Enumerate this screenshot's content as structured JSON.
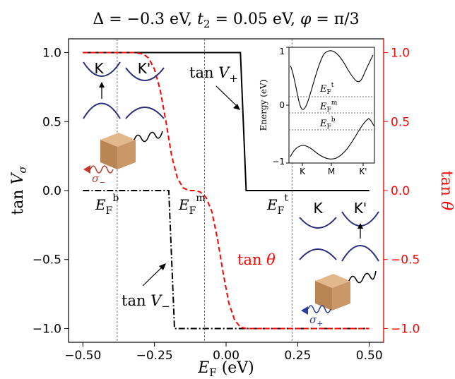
{
  "chart_data": {
    "type": "line",
    "title": "Δ = −0.3 eV, t₂ = 0.05 eV, φ = π/3",
    "xlabel": "E_F (eV)",
    "ylabel_left": "tan V_σ",
    "ylabel_right": "tan θ",
    "xlim": [
      -0.55,
      0.55
    ],
    "ylim": [
      -1.1,
      1.1
    ],
    "xticks": [
      -0.5,
      -0.25,
      0.0,
      0.25,
      0.5
    ],
    "xtick_labels": [
      "−0.50",
      "−0.25",
      "0.00",
      "0.25",
      "0.50"
    ],
    "yticks": [
      1.0,
      0.5,
      0.0,
      -0.5,
      -1.0
    ],
    "ytick_labels_left": [
      "1.0",
      "0.5",
      "0.0",
      "−0.5",
      "−1.0"
    ],
    "ytick_labels_right": [
      "1.0",
      "0.5",
      "0.0",
      "−0.5",
      "−1.0"
    ],
    "reference_lines_x": [
      -0.38,
      -0.075,
      0.23
    ],
    "series": [
      {
        "name": "tan V+",
        "color": "#000000",
        "style": "solid",
        "x": [
          -0.5,
          0.05,
          0.07,
          0.5
        ],
        "y": [
          1.0,
          1.0,
          0.0,
          0.0
        ]
      },
      {
        "name": "tan V−",
        "color": "#000000",
        "style": "dashdot",
        "x": [
          -0.5,
          -0.2,
          -0.18,
          0.5
        ],
        "y": [
          0.0,
          0.0,
          -1.0,
          -1.0
        ]
      },
      {
        "name": "tan θ",
        "color": "#ff0000",
        "style": "dashed",
        "x": [
          -0.5,
          -0.32,
          -0.29,
          -0.27,
          -0.25,
          -0.23,
          -0.21,
          -0.19,
          -0.17,
          -0.15,
          -0.13,
          -0.11,
          -0.09,
          -0.07,
          -0.05,
          -0.03,
          -0.01,
          0.01,
          0.03,
          0.05,
          0.07,
          0.1,
          0.5
        ],
        "y": [
          1.0,
          1.0,
          0.99,
          0.96,
          0.88,
          0.73,
          0.5,
          0.25,
          0.09,
          0.02,
          0.0,
          0.0,
          -0.01,
          -0.05,
          -0.15,
          -0.35,
          -0.6,
          -0.82,
          -0.94,
          -0.99,
          -1.0,
          -1.0,
          -1.0
        ]
      }
    ],
    "annotations": {
      "tanVplus": "tan V+",
      "tanVminus": "tan V−",
      "tantheta": "tan θ",
      "ef_b": "E_F^b",
      "ef_m": "E_F^m",
      "ef_t": "E_F^t",
      "valley_K": "K",
      "valley_Kp": "K'",
      "sigma_minus": "σ−",
      "sigma_plus": "σ+"
    },
    "inset": {
      "ylabel": "Energy (eV)",
      "ylim": [
        -1,
        1
      ],
      "yticks": [
        -1,
        0,
        1
      ],
      "ytick_labels": [
        "−1",
        "0",
        "1"
      ],
      "xtick_labels": [
        "K",
        "M",
        "K'"
      ],
      "levels": [
        {
          "label": "E_F^t",
          "value": 0.23
        },
        {
          "label": "E_F^m",
          "value": -0.075
        },
        {
          "label": "E_F^b",
          "value": -0.38
        }
      ]
    }
  }
}
